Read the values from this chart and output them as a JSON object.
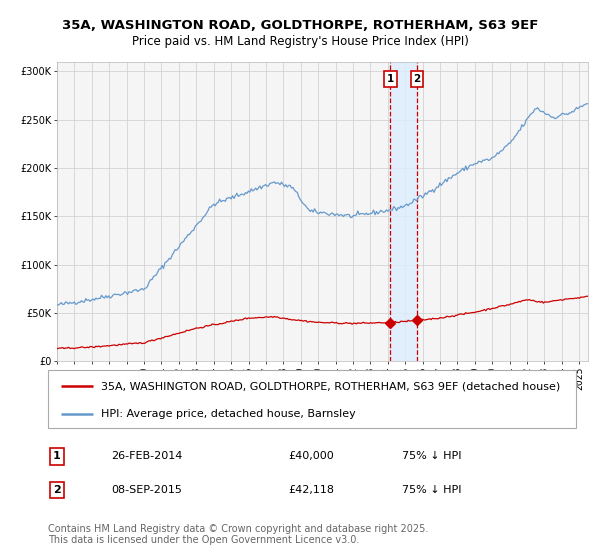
{
  "title_line1": "35A, WASHINGTON ROAD, GOLDTHORPE, ROTHERHAM, S63 9EF",
  "title_line2": "Price paid vs. HM Land Registry's House Price Index (HPI)",
  "legend_label_red": "35A, WASHINGTON ROAD, GOLDTHORPE, ROTHERHAM, S63 9EF (detached house)",
  "legend_label_blue": "HPI: Average price, detached house, Barnsley",
  "sale1_date": "26-FEB-2014",
  "sale1_price": 40000,
  "sale1_hpi": "75% ↓ HPI",
  "sale1_year": 2014.15,
  "sale2_date": "08-SEP-2015",
  "sale2_price": 42118,
  "sale2_hpi": "75% ↓ HPI",
  "sale2_year": 2015.69,
  "ylabel_ticks": [
    "£0",
    "£50K",
    "£100K",
    "£150K",
    "£200K",
    "£250K",
    "£300K"
  ],
  "ytick_values": [
    0,
    50000,
    100000,
    150000,
    200000,
    250000,
    300000
  ],
  "xlim": [
    1995,
    2025.5
  ],
  "ylim": [
    0,
    310000
  ],
  "background_color": "#ffffff",
  "plot_bg_color": "#f5f5f5",
  "grid_color": "#cccccc",
  "red_line_color": "#cc0000",
  "blue_line_color": "#6699cc",
  "dashed_line_color": "#cc0000",
  "highlight_fill_color": "#ddeeff",
  "copyright_text": "Contains HM Land Registry data © Crown copyright and database right 2025.\nThis data is licensed under the Open Government Licence v3.0.",
  "footnote_fontsize": 7,
  "title_fontsize1": 9.5,
  "title_fontsize2": 8.5,
  "legend_fontsize": 8,
  "tick_fontsize": 7,
  "info_fontsize": 8
}
